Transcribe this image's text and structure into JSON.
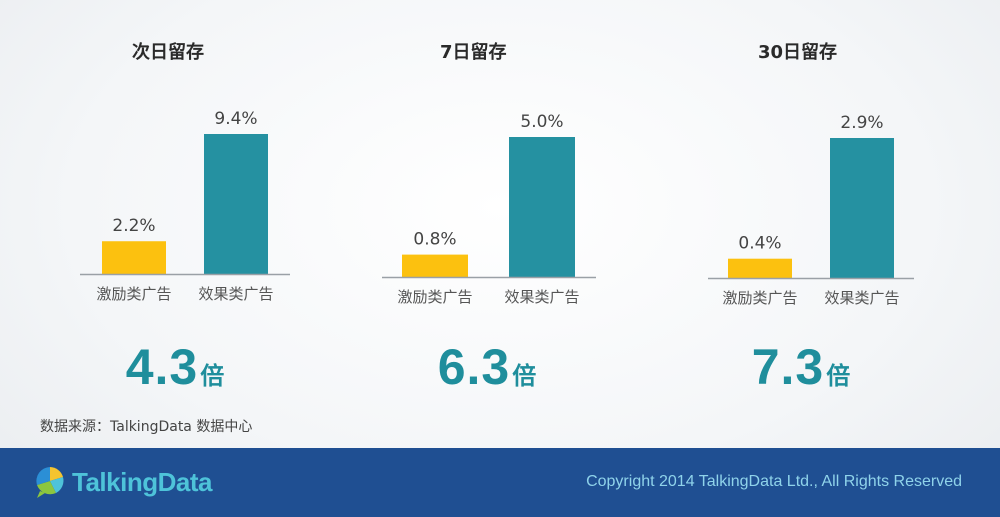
{
  "chart_data": [
    {
      "type": "bar",
      "title": "次日留存",
      "categories": [
        "激励类广告",
        "效果类广告"
      ],
      "values": [
        2.2,
        9.4
      ],
      "value_labels": [
        "2.2%",
        "9.4%"
      ],
      "colors": [
        "#fcc10f",
        "#2591a1"
      ],
      "ratio": "4.3",
      "ratio_unit": "倍"
    },
    {
      "type": "bar",
      "title": "7日留存",
      "categories": [
        "激励类广告",
        "效果类广告"
      ],
      "values": [
        0.8,
        5.0
      ],
      "value_labels": [
        "0.8%",
        "5.0%"
      ],
      "colors": [
        "#fcc10f",
        "#2591a1"
      ],
      "ratio": "6.3",
      "ratio_unit": "倍"
    },
    {
      "type": "bar",
      "title": "30日留存",
      "categories": [
        "激励类广告",
        "效果类广告"
      ],
      "values": [
        0.4,
        2.9
      ],
      "value_labels": [
        "0.4%",
        "2.9%"
      ],
      "colors": [
        "#fcc10f",
        "#2591a1"
      ],
      "ratio": "7.3",
      "ratio_unit": "倍"
    }
  ],
  "source": "数据来源：TalkingData 数据中心",
  "footer": {
    "logo_text": "TalkingData",
    "logo_icon": "talkingdata-pie-bubble-icon",
    "copyright": "Copyright 2014 TalkingData Ltd., All Rights Reserved"
  }
}
